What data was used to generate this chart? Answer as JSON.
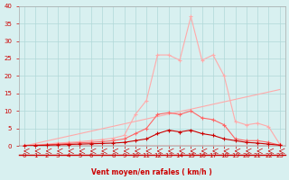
{
  "x": [
    0,
    1,
    2,
    3,
    4,
    5,
    6,
    7,
    8,
    9,
    10,
    11,
    12,
    13,
    14,
    15,
    16,
    17,
    18,
    19,
    20,
    21,
    22,
    23
  ],
  "line_light_pink": [
    0.2,
    0.3,
    0.5,
    0.8,
    1.0,
    1.2,
    1.5,
    1.8,
    2.2,
    3.0,
    9.0,
    13.0,
    26.0,
    26.0,
    24.5,
    37.0,
    24.5,
    26.0,
    20.0,
    7.0,
    6.0,
    6.5,
    5.5,
    0.5
  ],
  "line_medium_pink": [
    0.1,
    0.2,
    0.3,
    0.5,
    0.7,
    0.9,
    1.0,
    1.2,
    1.5,
    2.0,
    3.5,
    5.0,
    9.0,
    9.5,
    9.0,
    10.0,
    8.0,
    7.5,
    6.0,
    2.0,
    1.5,
    1.5,
    1.0,
    0.2
  ],
  "line_red": [
    0.0,
    0.1,
    0.2,
    0.3,
    0.4,
    0.5,
    0.6,
    0.7,
    0.8,
    1.0,
    1.5,
    2.0,
    3.5,
    4.5,
    4.0,
    4.5,
    3.5,
    3.0,
    2.0,
    1.5,
    1.0,
    0.8,
    0.5,
    0.2
  ],
  "line_diagonal": [
    0.0,
    0.7,
    1.4,
    2.1,
    2.8,
    3.5,
    4.2,
    4.9,
    5.6,
    6.3,
    7.0,
    7.7,
    8.4,
    9.1,
    9.8,
    10.5,
    11.2,
    11.9,
    12.6,
    13.3,
    14.0,
    14.7,
    15.4,
    16.1
  ],
  "background_color": "#d8f0f0",
  "grid_color": "#b0d8d8",
  "line_color_light": "#ffaaaa",
  "line_color_medium": "#ff6666",
  "line_color_red": "#cc0000",
  "line_color_diagonal": "#ffbbbb",
  "xlabel": "Vent moyen/en rafales ( km/h )",
  "ylim": [
    0,
    40
  ],
  "xlim": [
    0,
    23
  ],
  "yticks": [
    0,
    5,
    10,
    15,
    20,
    25,
    30,
    35,
    40
  ],
  "xticks": [
    0,
    1,
    2,
    3,
    4,
    5,
    6,
    7,
    8,
    9,
    10,
    11,
    12,
    13,
    14,
    15,
    16,
    17,
    18,
    19,
    20,
    21,
    22,
    23
  ]
}
